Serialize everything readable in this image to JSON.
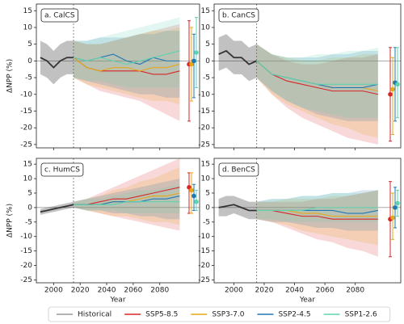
{
  "chart_data": [
    {
      "type": "line",
      "title": "a. CalCS",
      "ylabel": "ΔNPP (%)",
      "xlim": [
        1987,
        2110
      ],
      "xticks": [
        2000,
        2020,
        2040,
        2060,
        2080
      ],
      "ylim": [
        -26,
        17
      ],
      "yticks": [
        -25,
        -20,
        -15,
        -10,
        -5,
        0,
        5,
        10,
        15
      ],
      "vline": 2015,
      "zero_line": 0,
      "series": [
        {
          "name": "Historical",
          "color": "#333333",
          "x": [
            1990,
            1995,
            2000,
            2005,
            2010,
            2015
          ],
          "values": [
            1,
            0,
            -2,
            0,
            1,
            1
          ],
          "lower": [
            -4,
            -5,
            -7,
            -5,
            -4,
            -4
          ],
          "upper": [
            6,
            5,
            3,
            5,
            6,
            6
          ]
        },
        {
          "name": "SSP5-8.5",
          "color": "#d62728",
          "x": [
            2015,
            2025,
            2035,
            2045,
            2055,
            2065,
            2075,
            2085,
            2095
          ],
          "values": [
            1,
            -2,
            -3,
            -3,
            -3,
            -3,
            -4,
            -4,
            -3
          ],
          "lower": [
            -5,
            -7,
            -9,
            -10,
            -11,
            -12,
            -14,
            -16,
            -18
          ],
          "upper": [
            6,
            5,
            5,
            6,
            7,
            8,
            9,
            10,
            11
          ],
          "end": {
            "value": -1,
            "low": -18,
            "high": 12
          }
        },
        {
          "name": "SSP3-7.0",
          "color": "#e6a817",
          "x": [
            2015,
            2025,
            2035,
            2045,
            2055,
            2065,
            2075,
            2085,
            2095
          ],
          "values": [
            1,
            -2,
            -3,
            -2,
            -2,
            -3,
            -2,
            -2,
            -1
          ],
          "lower": [
            -5,
            -7,
            -8,
            -9,
            -10,
            -11,
            -12,
            -12,
            -13
          ],
          "upper": [
            6,
            5,
            5,
            6,
            7,
            8,
            9,
            9,
            10
          ],
          "end": {
            "value": -1,
            "low": -12,
            "high": 10
          }
        },
        {
          "name": "SSP2-4.5",
          "color": "#1f77b4",
          "x": [
            2015,
            2025,
            2035,
            2045,
            2055,
            2065,
            2075,
            2085,
            2095
          ],
          "values": [
            1,
            0,
            1,
            2,
            0,
            -1,
            1,
            0,
            0
          ],
          "lower": [
            -5,
            -6,
            -7,
            -8,
            -9,
            -10,
            -10,
            -11,
            -11
          ],
          "upper": [
            6,
            6,
            7,
            7,
            7,
            8,
            8,
            9,
            9
          ],
          "end": {
            "value": 0,
            "low": -11,
            "high": 8
          }
        },
        {
          "name": "SSP1-2.6",
          "color": "#5fd3b0",
          "x": [
            2015,
            2025,
            2035,
            2045,
            2055,
            2065,
            2075,
            2085,
            2095
          ],
          "values": [
            1,
            0,
            1,
            0,
            -1,
            0,
            1,
            2,
            3
          ],
          "lower": [
            -5,
            -6,
            -6,
            -7,
            -8,
            -8,
            -8,
            -8,
            -8
          ],
          "upper": [
            6,
            6,
            7,
            8,
            9,
            10,
            11,
            12,
            13
          ],
          "end": {
            "value": 2.5,
            "low": -8,
            "high": 13
          }
        }
      ]
    },
    {
      "type": "line",
      "title": "b. CanCS",
      "xlim": [
        1987,
        2110
      ],
      "xticks": [
        2000,
        2020,
        2040,
        2060,
        2080
      ],
      "ylim": [
        -26,
        17
      ],
      "yticks": [
        -25,
        -20,
        -15,
        -10,
        -5,
        0,
        5,
        10,
        15
      ],
      "vline": 2015,
      "zero_line": 0,
      "series": [
        {
          "name": "Historical",
          "color": "#333333",
          "x": [
            1990,
            1995,
            2000,
            2005,
            2010,
            2015
          ],
          "values": [
            2,
            3,
            1,
            1,
            -1,
            0
          ],
          "lower": [
            -3,
            -2,
            -4,
            -4,
            -6,
            -5
          ],
          "upper": [
            7,
            8,
            6,
            6,
            4,
            5
          ]
        },
        {
          "name": "SSP5-8.5",
          "color": "#d62728",
          "x": [
            2015,
            2025,
            2035,
            2045,
            2055,
            2065,
            2075,
            2085,
            2095
          ],
          "values": [
            0,
            -4,
            -6,
            -7,
            -8,
            -9,
            -9,
            -9,
            -10
          ],
          "lower": [
            -5,
            -10,
            -14,
            -17,
            -19,
            -21,
            -23,
            -24,
            -25
          ],
          "upper": [
            5,
            2,
            0,
            -1,
            -1,
            0,
            1,
            1,
            2
          ],
          "end": {
            "value": -10,
            "low": -24,
            "high": 4
          }
        },
        {
          "name": "SSP3-7.0",
          "color": "#e6a817",
          "x": [
            2015,
            2025,
            2035,
            2045,
            2055,
            2065,
            2075,
            2085,
            2095
          ],
          "values": [
            0,
            -4,
            -5,
            -6,
            -7,
            -8,
            -8,
            -8,
            -9
          ],
          "lower": [
            -5,
            -10,
            -13,
            -15,
            -17,
            -19,
            -20,
            -22,
            -23
          ],
          "upper": [
            5,
            2,
            1,
            0,
            0,
            1,
            1,
            2,
            2
          ],
          "end": {
            "value": -8.5,
            "low": -22,
            "high": 1
          }
        },
        {
          "name": "SSP2-4.5",
          "color": "#1f77b4",
          "x": [
            2015,
            2025,
            2035,
            2045,
            2055,
            2065,
            2075,
            2085,
            2095
          ],
          "values": [
            0,
            -4,
            -5,
            -6,
            -7,
            -8,
            -8,
            -8,
            -7
          ],
          "lower": [
            -5,
            -9,
            -12,
            -14,
            -16,
            -17,
            -18,
            -18,
            -18
          ],
          "upper": [
            5,
            2,
            1,
            1,
            1,
            2,
            2,
            3,
            3
          ],
          "end": {
            "value": -6.5,
            "low": -18,
            "high": 4
          }
        },
        {
          "name": "SSP1-2.6",
          "color": "#5fd3b0",
          "x": [
            2015,
            2025,
            2035,
            2045,
            2055,
            2065,
            2075,
            2085,
            2095
          ],
          "values": [
            0,
            -4,
            -5,
            -6,
            -7,
            -7,
            -7,
            -7,
            -7
          ],
          "lower": [
            -5,
            -9,
            -12,
            -14,
            -15,
            -16,
            -17,
            -17,
            -17
          ],
          "upper": [
            5,
            2,
            1,
            1,
            2,
            2,
            3,
            3,
            4
          ],
          "end": {
            "value": -7,
            "low": -17,
            "high": 4
          }
        }
      ]
    },
    {
      "type": "line",
      "title": "c. HumCS",
      "ylabel": "ΔNPP (%)",
      "xlabel": "Year",
      "xlim": [
        1987,
        2110
      ],
      "xticks": [
        2000,
        2020,
        2040,
        2060,
        2080
      ],
      "ylim": [
        -26,
        17
      ],
      "yticks": [
        -25,
        -20,
        -15,
        -10,
        -5,
        0,
        5,
        10,
        15
      ],
      "vline": 2015,
      "zero_line": 0,
      "series": [
        {
          "name": "Historical",
          "color": "#333333",
          "x": [
            1990,
            1995,
            2000,
            2005,
            2010,
            2015
          ],
          "values": [
            -1.5,
            -1,
            -0.5,
            0,
            0.5,
            1
          ],
          "lower": [
            -2.5,
            -2,
            -1.5,
            -1,
            -0.5,
            0
          ],
          "upper": [
            -0.5,
            0,
            0.5,
            1,
            1.5,
            2
          ]
        },
        {
          "name": "SSP5-8.5",
          "color": "#d62728",
          "x": [
            2015,
            2025,
            2035,
            2045,
            2055,
            2065,
            2075,
            2085,
            2095
          ],
          "values": [
            1,
            1,
            2,
            3,
            3,
            4,
            5,
            6,
            7
          ],
          "lower": [
            0,
            -1,
            -2,
            -3,
            -4,
            -5,
            -6,
            -7,
            -8
          ],
          "upper": [
            2,
            3,
            5,
            7,
            9,
            11,
            13,
            15,
            17
          ],
          "end": {
            "value": 7,
            "low": -2,
            "high": 12
          }
        },
        {
          "name": "SSP3-7.0",
          "color": "#e6a817",
          "x": [
            2015,
            2025,
            2035,
            2045,
            2055,
            2065,
            2075,
            2085,
            2095
          ],
          "values": [
            1,
            1,
            1,
            2,
            2,
            3,
            4,
            4,
            5
          ],
          "lower": [
            0,
            -1,
            -2,
            -3,
            -3,
            -4,
            -5,
            -5,
            -6
          ],
          "upper": [
            2,
            3,
            4,
            6,
            7,
            9,
            10,
            12,
            14
          ],
          "end": {
            "value": 6,
            "low": -2,
            "high": 12
          }
        },
        {
          "name": "SSP2-4.5",
          "color": "#1f77b4",
          "x": [
            2015,
            2025,
            2035,
            2045,
            2055,
            2065,
            2075,
            2085,
            2095
          ],
          "values": [
            1,
            1,
            1,
            2,
            2,
            2,
            3,
            3,
            4
          ],
          "lower": [
            0,
            -1,
            -1,
            -2,
            -2,
            -3,
            -3,
            -4,
            -4
          ],
          "upper": [
            2,
            3,
            4,
            5,
            6,
            7,
            8,
            9,
            10
          ],
          "end": {
            "value": 4,
            "low": -1,
            "high": 8
          }
        },
        {
          "name": "SSP1-2.6",
          "color": "#5fd3b0",
          "x": [
            2015,
            2025,
            2035,
            2045,
            2055,
            2065,
            2075,
            2085,
            2095
          ],
          "values": [
            1,
            1,
            1,
            1,
            2,
            2,
            2,
            2,
            2
          ],
          "lower": [
            0,
            -1,
            -1,
            -1,
            -2,
            -2,
            -2,
            -2,
            -2
          ],
          "upper": [
            2,
            3,
            3,
            4,
            5,
            6,
            6,
            7,
            8
          ],
          "end": {
            "value": 2,
            "low": -1,
            "high": 6
          }
        }
      ]
    },
    {
      "type": "line",
      "title": "d. BenCS",
      "xlabel": "Year",
      "xlim": [
        1987,
        2110
      ],
      "xticks": [
        2000,
        2020,
        2040,
        2060,
        2080
      ],
      "ylim": [
        -26,
        17
      ],
      "yticks": [
        -25,
        -20,
        -15,
        -10,
        -5,
        0,
        5,
        10,
        15
      ],
      "vline": 2015,
      "zero_line": 0,
      "series": [
        {
          "name": "Historical",
          "color": "#333333",
          "x": [
            1990,
            1995,
            2000,
            2005,
            2010,
            2015
          ],
          "values": [
            0,
            0.5,
            1,
            0,
            -1,
            -1
          ],
          "lower": [
            -3,
            -3,
            -2,
            -3,
            -4,
            -4
          ],
          "upper": [
            3,
            4,
            4,
            3,
            2,
            2
          ]
        },
        {
          "name": "SSP5-8.5",
          "color": "#d62728",
          "x": [
            2015,
            2025,
            2035,
            2045,
            2055,
            2065,
            2075,
            2085,
            2095
          ],
          "values": [
            -1,
            -1,
            -2,
            -3,
            -3,
            -4,
            -4,
            -4,
            -4
          ],
          "lower": [
            -4,
            -5,
            -7,
            -9,
            -11,
            -12,
            -14,
            -15,
            -17
          ],
          "upper": [
            2,
            2,
            2,
            2,
            3,
            3,
            4,
            5,
            6
          ],
          "end": {
            "value": -4,
            "low": -17,
            "high": 9
          }
        },
        {
          "name": "SSP3-7.0",
          "color": "#e6a817",
          "x": [
            2015,
            2025,
            2035,
            2045,
            2055,
            2065,
            2075,
            2085,
            2095
          ],
          "values": [
            -1,
            -1,
            -1,
            -2,
            -2,
            -3,
            -3,
            -3,
            -3
          ],
          "lower": [
            -4,
            -5,
            -6,
            -8,
            -9,
            -10,
            -11,
            -12,
            -13
          ],
          "upper": [
            2,
            2,
            3,
            3,
            3,
            4,
            4,
            5,
            6
          ],
          "end": {
            "value": -3.5,
            "low": -11,
            "high": 5
          }
        },
        {
          "name": "SSP2-4.5",
          "color": "#1f77b4",
          "x": [
            2015,
            2025,
            2035,
            2045,
            2055,
            2065,
            2075,
            2085,
            2095
          ],
          "values": [
            -1,
            -1,
            -1,
            -1,
            -1,
            -1,
            -2,
            -2,
            -1
          ],
          "lower": [
            -4,
            -5,
            -5,
            -6,
            -7,
            -7,
            -8,
            -8,
            -8
          ],
          "upper": [
            2,
            3,
            3,
            4,
            4,
            5,
            5,
            6,
            6
          ],
          "end": {
            "value": 0,
            "low": -7,
            "high": 7
          }
        },
        {
          "name": "SSP1-2.6",
          "color": "#5fd3b0",
          "x": [
            2015,
            2025,
            2035,
            2045,
            2055,
            2065,
            2075,
            2085,
            2095
          ],
          "values": [
            -1,
            -1,
            -1,
            -1,
            0,
            0,
            0,
            0,
            0
          ],
          "lower": [
            -4,
            -4,
            -5,
            -5,
            -5,
            -5,
            -5,
            -5,
            -5
          ],
          "upper": [
            2,
            3,
            3,
            4,
            4,
            5,
            5,
            5,
            6
          ],
          "end": {
            "value": 1.5,
            "low": -3,
            "high": 6
          }
        }
      ]
    }
  ]
}
